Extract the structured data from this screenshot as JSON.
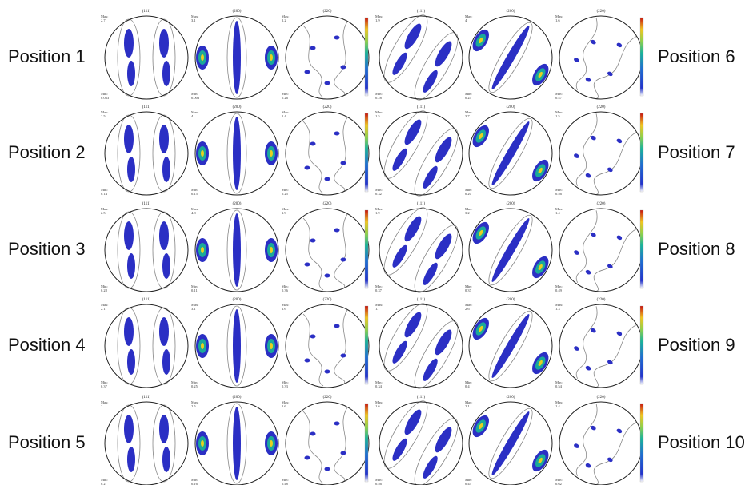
{
  "max_label": "Max:",
  "min_label": "Min:",
  "rows": [
    {
      "label": "Position 1",
      "left": [
        {
          "title": "(111)",
          "max": "2.7",
          "min": "0.033"
        },
        {
          "title": "(200)",
          "max": "3.1",
          "min": "0.003"
        },
        {
          "title": "(220)",
          "max": "2.2",
          "min": "0.26"
        }
      ],
      "right_label": "Position 6",
      "right": [
        {
          "title": "(111)",
          "max": "1.9",
          "min": "0.28"
        },
        {
          "title": "(200)",
          "max": "4",
          "min": "0.24"
        },
        {
          "title": "(220)",
          "max": "1.6",
          "min": "0.47"
        }
      ]
    },
    {
      "label": "Position 2",
      "left": [
        {
          "title": "(111)",
          "max": "2.5",
          "min": "0.14"
        },
        {
          "title": "(200)",
          "max": "4",
          "min": "0.15"
        },
        {
          "title": "(220)",
          "max": "1.4",
          "min": "0.25"
        }
      ],
      "right_label": "Position 7",
      "right": [
        {
          "title": "(111)",
          "max": "1.5",
          "min": "0.32"
        },
        {
          "title": "(200)",
          "max": "3.7",
          "min": "0.20"
        },
        {
          "title": "(220)",
          "max": "1.5",
          "min": "0.46"
        }
      ]
    },
    {
      "label": "Position 3",
      "left": [
        {
          "title": "(111)",
          "max": "2.5",
          "min": "0.28"
        },
        {
          "title": "(200)",
          "max": "4.8",
          "min": "0.11"
        },
        {
          "title": "(220)",
          "max": "1.9",
          "min": "0.36"
        }
      ],
      "right_label": "Position 8",
      "right": [
        {
          "title": "(111)",
          "max": "1.9",
          "min": "0.37"
        },
        {
          "title": "(200)",
          "max": "3.2",
          "min": "0.37"
        },
        {
          "title": "(220)",
          "max": "1.4",
          "min": "0.49"
        }
      ]
    },
    {
      "label": "Position 4",
      "left": [
        {
          "title": "(111)",
          "max": "2.1",
          "min": "0.37"
        },
        {
          "title": "(200)",
          "max": "3.1",
          "min": "0.25"
        },
        {
          "title": "(220)",
          "max": "1.6",
          "min": "0.33"
        }
      ],
      "right_label": "Position 9",
      "right": [
        {
          "title": "(111)",
          "max": "1.7",
          "min": "0.34"
        },
        {
          "title": "(200)",
          "max": "2.6",
          "min": "0.4"
        },
        {
          "title": "(220)",
          "max": "1.3",
          "min": "0.54"
        }
      ]
    },
    {
      "label": "Position 5",
      "left": [
        {
          "title": "(111)",
          "max": "2",
          "min": "0.2"
        },
        {
          "title": "(200)",
          "max": "2.5",
          "min": "0.16"
        },
        {
          "title": "(220)",
          "max": "1.6",
          "min": "0.48"
        }
      ],
      "right_label": "Position 10",
      "right": [
        {
          "title": "(111)",
          "max": "1.6",
          "min": "0.46"
        },
        {
          "title": "(200)",
          "max": "2.1",
          "min": "0.45"
        },
        {
          "title": "(220)",
          "max": "1.4",
          "min": "0.62"
        }
      ]
    }
  ]
}
